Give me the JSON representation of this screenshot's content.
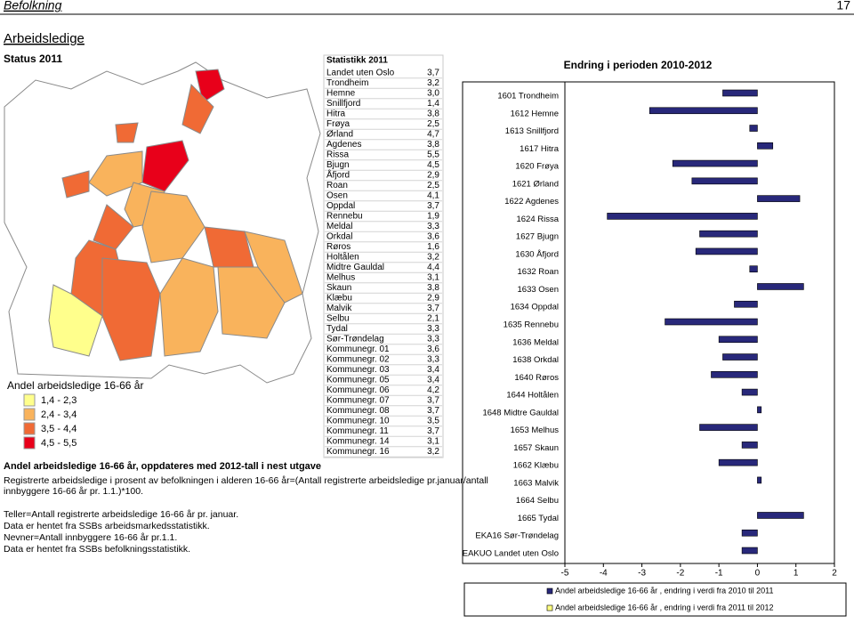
{
  "header": {
    "section": "Befolkning",
    "page": "17"
  },
  "title": "Arbeidsledige",
  "subtitle": "Status 2011",
  "map_legend": {
    "title": "Andel arbeidsledige 16-66 år",
    "classes": [
      {
        "label": "1,4 - 2,3",
        "color": "#ffff8c"
      },
      {
        "label": "2,4 - 3,4",
        "color": "#f9b35c"
      },
      {
        "label": "3,5 - 4,4",
        "color": "#f06a35"
      },
      {
        "label": "4,5 - 5,5",
        "color": "#e8001a"
      }
    ]
  },
  "table": {
    "header": "Statistikk 2011",
    "rows": [
      [
        "Landet uten Oslo",
        "3,7"
      ],
      [
        "Trondheim",
        "3,2"
      ],
      [
        "Hemne",
        "3,0"
      ],
      [
        "Snillfjord",
        "1,4"
      ],
      [
        "Hitra",
        "3,8"
      ],
      [
        "Frøya",
        "2,5"
      ],
      [
        "Ørland",
        "4,7"
      ],
      [
        "Agdenes",
        "3,8"
      ],
      [
        "Rissa",
        "5,5"
      ],
      [
        "Bjugn",
        "4,5"
      ],
      [
        "Åfjord",
        "2,9"
      ],
      [
        "Roan",
        "2,5"
      ],
      [
        "Osen",
        "4,1"
      ],
      [
        "Oppdal",
        "3,7"
      ],
      [
        "Rennebu",
        "1,9"
      ],
      [
        "Meldal",
        "3,3"
      ],
      [
        "Orkdal",
        "3,6"
      ],
      [
        "Røros",
        "1,6"
      ],
      [
        "Holtålen",
        "3,2"
      ],
      [
        "Midtre Gauldal",
        "4,4"
      ],
      [
        "Melhus",
        "3,1"
      ],
      [
        "Skaun",
        "3,8"
      ],
      [
        "Klæbu",
        "2,9"
      ],
      [
        "Malvik",
        "3,7"
      ],
      [
        "Selbu",
        "2,1"
      ],
      [
        "Tydal",
        "3,3"
      ],
      [
        "Sør-Trøndelag",
        "3,3"
      ],
      [
        "Kommunegr. 01",
        "3,6"
      ],
      [
        "Kommunegr. 02",
        "3,3"
      ],
      [
        "Kommunegr. 03",
        "3,4"
      ],
      [
        "Kommunegr. 05",
        "3,4"
      ],
      [
        "Kommunegr. 06",
        "4,2"
      ],
      [
        "Kommunegr. 07",
        "3,7"
      ],
      [
        "Kommunegr. 08",
        "3,7"
      ],
      [
        "Kommunegr. 10",
        "3,5"
      ],
      [
        "Kommunegr. 11",
        "3,7"
      ],
      [
        "Kommunegr. 14",
        "3,1"
      ],
      [
        "Kommunegr. 16",
        "3,2"
      ]
    ]
  },
  "notes": {
    "heading": "Andel arbeidsledige 16-66 år, oppdateres med 2012-tall i nest utgave",
    "lines": [
      "Registrerte arbeidsledige i prosent av befolkningen i alderen 16-66 år=(Antall registrerte arbeidsledige pr.januar/antall",
      "innbyggere 16-66 år pr. 1.1.)*100.",
      "Teller=Antall registrerte arbeidsledige 16-66 år pr. januar.",
      "Data er hentet fra SSBs arbeidsmarkedsstatistikk.",
      "Nevner=Antall innbyggere 16-66 år pr.1.1.",
      "Data er hentet fra SSBs befolkningsstatistikk."
    ]
  },
  "chart_data": {
    "type": "hbar",
    "title": "Endring i perioden 2010-2012",
    "categories": [
      "1601 Trondheim",
      "1612 Hemne",
      "1613 Snillfjord",
      "1617 Hitra",
      "1620 Frøya",
      "1621 Ørland",
      "1622 Agdenes",
      "1624 Rissa",
      "1627 Bjugn",
      "1630 Åfjord",
      "1632 Roan",
      "1633 Osen",
      "1634 Oppdal",
      "1635 Rennebu",
      "1636 Meldal",
      "1638 Orkdal",
      "1640 Røros",
      "1644 Holtålen",
      "1648 Midtre Gauldal",
      "1653 Melhus",
      "1657 Skaun",
      "1662 Klæbu",
      "1663 Malvik",
      "1664 Selbu",
      "1665 Tydal",
      "EKA16 Sør-Trøndelag",
      "EAKUO Landet uten Oslo"
    ],
    "series": [
      {
        "name": "Andel arbeidsledige 16-66 år , endring i verdi fra 2010 til 2011",
        "color": "#28287a",
        "values": [
          -0.9,
          -2.8,
          -0.2,
          0.4,
          -2.2,
          -1.7,
          1.1,
          -3.9,
          -1.5,
          -1.6,
          -0.2,
          1.2,
          -0.6,
          -2.4,
          -1.0,
          -0.9,
          -1.2,
          -0.4,
          0.1,
          -1.5,
          -0.4,
          -1.0,
          0.1,
          0,
          1.2,
          -0.4,
          -0.4
        ]
      },
      {
        "name": "Andel arbeidsledige 16-66 år , endring i verdi fra 2011 til 2012",
        "color": "#ffff80",
        "values": [
          null,
          null,
          null,
          null,
          null,
          null,
          null,
          null,
          null,
          null,
          null,
          null,
          null,
          null,
          null,
          null,
          null,
          null,
          null,
          null,
          null,
          null,
          null,
          null,
          null,
          null,
          null
        ]
      }
    ],
    "xlim": [
      -5,
      2
    ],
    "xticks": [
      -5,
      -4,
      -3,
      -2,
      -1,
      0,
      1,
      2
    ]
  }
}
